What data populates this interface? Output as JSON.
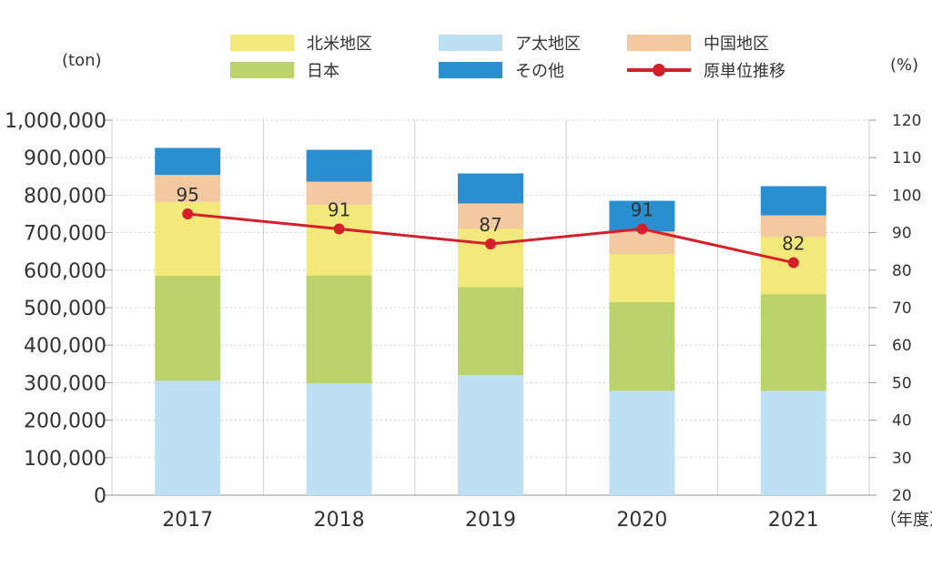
{
  "chart_data": {
    "type": "bar",
    "title": "",
    "categories": [
      "2017",
      "2018",
      "2019",
      "2020",
      "2021"
    ],
    "series": [
      {
        "name": "ア太地区",
        "color": "#bde0f5",
        "values": [
          305000,
          298000,
          320000,
          278000,
          278000
        ]
      },
      {
        "name": "日本",
        "color": "#bcd26a",
        "values": [
          280000,
          288000,
          235000,
          237000,
          258000
        ]
      },
      {
        "name": "北米地区",
        "color": "#f3e97a",
        "values": [
          197000,
          188000,
          155000,
          128000,
          152000
        ]
      },
      {
        "name": "中国地区",
        "color": "#f3c9a0",
        "values": [
          72000,
          62000,
          68000,
          60000,
          58000
        ]
      },
      {
        "name": "その他",
        "color": "#2a8fd0",
        "values": [
          72000,
          85000,
          80000,
          82000,
          78000
        ]
      }
    ],
    "line_series": {
      "name": "原単位推移",
      "color": "#d3202a",
      "values": [
        95,
        91,
        87,
        91,
        82
      ],
      "axis": "right"
    },
    "legend": {
      "items": [
        "北米地区",
        "ア太地区",
        "中国地区",
        "日本",
        "その他",
        "原単位推移"
      ],
      "placement": "top"
    },
    "y_left": {
      "unit": "(ton)",
      "min": 0,
      "max": 1000000,
      "ticks": [
        0,
        100000,
        200000,
        300000,
        400000,
        500000,
        600000,
        700000,
        800000,
        900000,
        1000000
      ],
      "tick_labels": [
        "0",
        "100,000",
        "200,000",
        "300,000",
        "400,000",
        "500,000",
        "600,000",
        "700,000",
        "800,000",
        "900,000",
        "1,000,000"
      ]
    },
    "y_right": {
      "unit": "(%)",
      "min": 20,
      "max": 120,
      "ticks": [
        20,
        30,
        40,
        50,
        60,
        70,
        80,
        90,
        100,
        110,
        120
      ],
      "tick_labels": [
        "20",
        "30",
        "40",
        "50",
        "60",
        "70",
        "80",
        "90",
        "100",
        "110",
        "120"
      ]
    },
    "x_unit": "（年度）",
    "grid": true
  }
}
